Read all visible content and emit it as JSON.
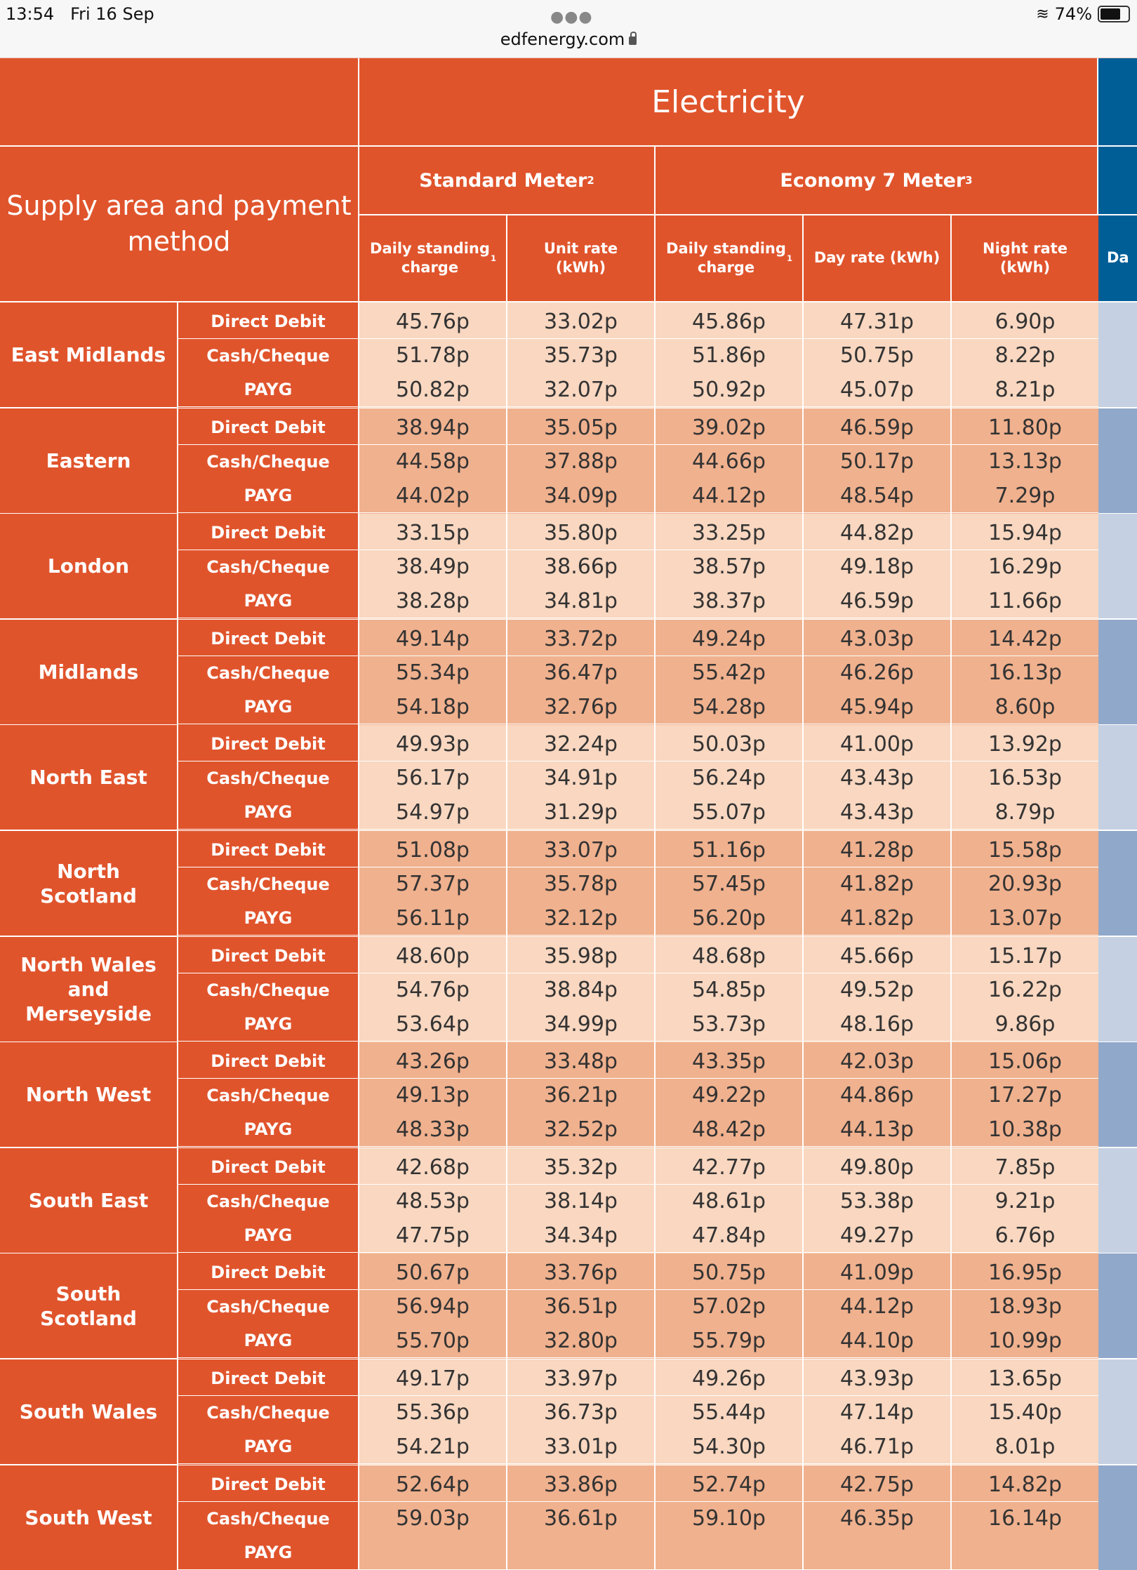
{
  "status_bar": {
    "time": "13:54",
    "date": "Fri 16 Sep",
    "battery": "74%",
    "battery_level": 0.74,
    "url": "edfenergy.com"
  },
  "table": {
    "title": "Electricity",
    "row_header": "Supply area and payment method",
    "groups": [
      {
        "label": "Standard Meter",
        "note": "2"
      },
      {
        "label": "Economy 7 Meter",
        "note": "3"
      }
    ],
    "columns": [
      {
        "label": "Daily standing charge",
        "note": "1"
      },
      {
        "label": "Unit rate (kWh)",
        "note": ""
      },
      {
        "label": "Daily standing charge",
        "note": "1"
      },
      {
        "label": "Day rate (kWh)",
        "note": ""
      },
      {
        "label": "Night rate (kWh)",
        "note": ""
      }
    ],
    "next_column_partial": "Da",
    "methods": [
      "Direct Debit",
      "Cash/Cheque",
      "PAYG"
    ],
    "regions": [
      {
        "name": "East Midlands",
        "rows": [
          [
            "45.76p",
            "33.02p",
            "45.86p",
            "47.31p",
            "6.90p"
          ],
          [
            "51.78p",
            "35.73p",
            "51.86p",
            "50.75p",
            "8.22p"
          ],
          [
            "50.82p",
            "32.07p",
            "50.92p",
            "45.07p",
            "8.21p"
          ]
        ]
      },
      {
        "name": "Eastern",
        "rows": [
          [
            "38.94p",
            "35.05p",
            "39.02p",
            "46.59p",
            "11.80p"
          ],
          [
            "44.58p",
            "37.88p",
            "44.66p",
            "50.17p",
            "13.13p"
          ],
          [
            "44.02p",
            "34.09p",
            "44.12p",
            "48.54p",
            "7.29p"
          ]
        ]
      },
      {
        "name": "London",
        "rows": [
          [
            "33.15p",
            "35.80p",
            "33.25p",
            "44.82p",
            "15.94p"
          ],
          [
            "38.49p",
            "38.66p",
            "38.57p",
            "49.18p",
            "16.29p"
          ],
          [
            "38.28p",
            "34.81p",
            "38.37p",
            "46.59p",
            "11.66p"
          ]
        ]
      },
      {
        "name": "Midlands",
        "rows": [
          [
            "49.14p",
            "33.72p",
            "49.24p",
            "43.03p",
            "14.42p"
          ],
          [
            "55.34p",
            "36.47p",
            "55.42p",
            "46.26p",
            "16.13p"
          ],
          [
            "54.18p",
            "32.76p",
            "54.28p",
            "45.94p",
            "8.60p"
          ]
        ]
      },
      {
        "name": "North East",
        "rows": [
          [
            "49.93p",
            "32.24p",
            "50.03p",
            "41.00p",
            "13.92p"
          ],
          [
            "56.17p",
            "34.91p",
            "56.24p",
            "43.43p",
            "16.53p"
          ],
          [
            "54.97p",
            "31.29p",
            "55.07p",
            "43.43p",
            "8.79p"
          ]
        ]
      },
      {
        "name": "North Scotland",
        "rows": [
          [
            "51.08p",
            "33.07p",
            "51.16p",
            "41.28p",
            "15.58p"
          ],
          [
            "57.37p",
            "35.78p",
            "57.45p",
            "41.82p",
            "20.93p"
          ],
          [
            "56.11p",
            "32.12p",
            "56.20p",
            "41.82p",
            "13.07p"
          ]
        ]
      },
      {
        "name": "North Wales and Merseyside",
        "rows": [
          [
            "48.60p",
            "35.98p",
            "48.68p",
            "45.66p",
            "15.17p"
          ],
          [
            "54.76p",
            "38.84p",
            "54.85p",
            "49.52p",
            "16.22p"
          ],
          [
            "53.64p",
            "34.99p",
            "53.73p",
            "48.16p",
            "9.86p"
          ]
        ]
      },
      {
        "name": "North West",
        "rows": [
          [
            "43.26p",
            "33.48p",
            "43.35p",
            "42.03p",
            "15.06p"
          ],
          [
            "49.13p",
            "36.21p",
            "49.22p",
            "44.86p",
            "17.27p"
          ],
          [
            "48.33p",
            "32.52p",
            "48.42p",
            "44.13p",
            "10.38p"
          ]
        ]
      },
      {
        "name": "South East",
        "rows": [
          [
            "42.68p",
            "35.32p",
            "42.77p",
            "49.80p",
            "7.85p"
          ],
          [
            "48.53p",
            "38.14p",
            "48.61p",
            "53.38p",
            "9.21p"
          ],
          [
            "47.75p",
            "34.34p",
            "47.84p",
            "49.27p",
            "6.76p"
          ]
        ]
      },
      {
        "name": "South Scotland",
        "rows": [
          [
            "50.67p",
            "33.76p",
            "50.75p",
            "41.09p",
            "16.95p"
          ],
          [
            "56.94p",
            "36.51p",
            "57.02p",
            "44.12p",
            "18.93p"
          ],
          [
            "55.70p",
            "32.80p",
            "55.79p",
            "44.10p",
            "10.99p"
          ]
        ]
      },
      {
        "name": "South Wales",
        "rows": [
          [
            "49.17p",
            "33.97p",
            "49.26p",
            "43.93p",
            "13.65p"
          ],
          [
            "55.36p",
            "36.73p",
            "55.44p",
            "47.14p",
            "15.40p"
          ],
          [
            "54.21p",
            "33.01p",
            "54.30p",
            "46.71p",
            "8.01p"
          ]
        ]
      },
      {
        "name": "South West",
        "rows": [
          [
            "52.64p",
            "33.86p",
            "52.74p",
            "42.75p",
            "14.82p"
          ],
          [
            "59.03p",
            "36.61p",
            "59.10p",
            "46.35p",
            "16.14p"
          ],
          [
            "",
            "",
            "",
            "",
            ""
          ]
        ]
      }
    ]
  },
  "colors": {
    "header_orange": "#e0542c",
    "row_light": "#f9d7c0",
    "row_dark": "#f0b18e",
    "gas_blue": "#005e97",
    "blue_light": "#c5d1e2",
    "blue_dark": "#90a8ca"
  }
}
